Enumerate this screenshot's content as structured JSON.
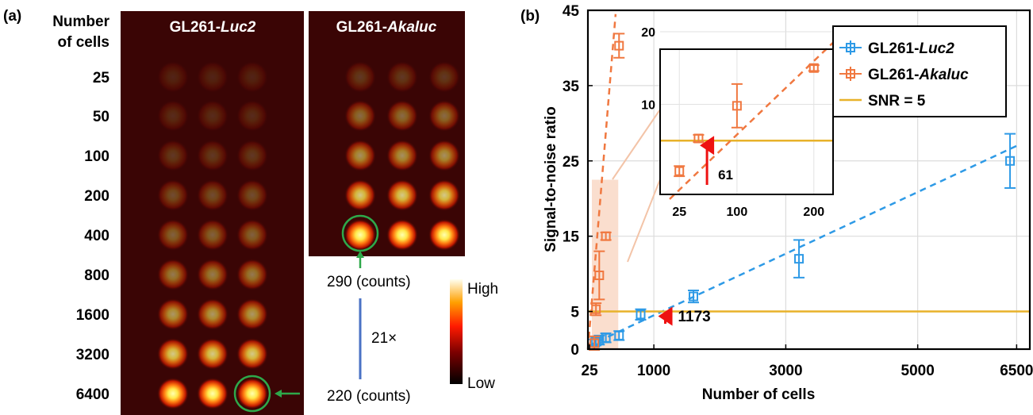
{
  "panel_a": {
    "label": "(a)",
    "row_header": [
      "Number",
      "of cells"
    ],
    "rows": [
      "25",
      "50",
      "100",
      "200",
      "400",
      "800",
      "1600",
      "3200",
      "6400"
    ],
    "luc2_title": {
      "prefix": "GL261-",
      "gene": "Luc2"
    },
    "akaluc_title": {
      "prefix": "GL261-",
      "gene": "Akaluc"
    },
    "luc2_spot_intensity": [
      0.12,
      0.15,
      0.2,
      0.28,
      0.36,
      0.46,
      0.58,
      0.78,
      1.0
    ],
    "akaluc_spot_intensity": [
      0.2,
      0.4,
      0.55,
      0.78,
      1.0
    ],
    "top_counts": "290 (counts)",
    "bottom_counts": "220 (counts)",
    "ratio": "21×",
    "colorbar": {
      "high": "High",
      "low": "Low"
    },
    "colors": {
      "circle": "#2ea84a",
      "arrow": "#2ea84a",
      "ratio_line": "#4a72c4",
      "background": "#3a0505"
    }
  },
  "chart_data": {
    "type": "scatter",
    "panel_label": "(b)",
    "xlabel": "Number of cells",
    "ylabel": "Signal-to-noise ratio",
    "xlim": [
      0,
      6700
    ],
    "ylim": [
      0,
      45
    ],
    "xtick_labels": [
      "25",
      "1000",
      "3000",
      "5000",
      "6500"
    ],
    "xticks": [
      25,
      1000,
      3000,
      5000,
      6500
    ],
    "yticks": [
      0,
      5,
      15,
      25,
      35,
      45
    ],
    "grid": true,
    "legend_position": "top-right",
    "series": [
      {
        "name_prefix": "GL261-",
        "name_gene": "Luc2",
        "color": "#2e9ae6",
        "points": [
          {
            "x": 25,
            "y": 0.8,
            "err": 0.5
          },
          {
            "x": 50,
            "y": 1.0,
            "err": 0.5
          },
          {
            "x": 100,
            "y": 1.2,
            "err": 0.6
          },
          {
            "x": 200,
            "y": 1.5,
            "err": 0.6
          },
          {
            "x": 400,
            "y": 1.8,
            "err": 0.6
          },
          {
            "x": 800,
            "y": 4.6,
            "err": 0.7
          },
          {
            "x": 1600,
            "y": 7.0,
            "err": 0.8
          },
          {
            "x": 3200,
            "y": 12.0,
            "err": 2.5
          },
          {
            "x": 6400,
            "y": 25.0,
            "err": 3.6
          }
        ],
        "fit": [
          [
            0,
            0.4
          ],
          [
            6500,
            27.0
          ]
        ]
      },
      {
        "name_prefix": "GL261-",
        "name_gene": "Akaluc",
        "color": "#f07840",
        "points": [
          {
            "x": 25,
            "y": 0.8,
            "err": 0.9
          },
          {
            "x": 50,
            "y": 5.3,
            "err": 0.8
          },
          {
            "x": 100,
            "y": 9.8,
            "err": 3.2
          },
          {
            "x": 200,
            "y": 15.0,
            "err": 0.5
          },
          {
            "x": 400,
            "y": 40.3,
            "err": 1.6
          }
        ],
        "fit": [
          [
            0,
            0
          ],
          [
            420,
            44.5
          ]
        ]
      }
    ],
    "threshold": {
      "name": "SNR = 5",
      "y": 5,
      "color": "#e8b22a"
    },
    "detection_limit": {
      "x": 1173,
      "label": "1173",
      "color": "#ee1111"
    },
    "highlight_region": {
      "x": [
        0,
        400
      ],
      "y": [
        0,
        22.5
      ],
      "color": "#f9d8c6"
    },
    "inset": {
      "xlim": [
        0,
        225
      ],
      "ylim": [
        0,
        20
      ],
      "xticks": [
        25,
        100,
        200
      ],
      "yticks": [
        10,
        20
      ],
      "points": [
        {
          "x": 25,
          "y": 0.8,
          "err": 0.7
        },
        {
          "x": 50,
          "y": 5.3,
          "err": 0.5
        },
        {
          "x": 100,
          "y": 9.8,
          "err": 3.0
        },
        {
          "x": 200,
          "y": 15.0,
          "err": 0.4
        }
      ],
      "fit": [
        [
          0,
          -3.6
        ],
        [
          225,
          18.5
        ]
      ],
      "detection_limit": {
        "x": 61,
        "label": "61"
      }
    }
  }
}
